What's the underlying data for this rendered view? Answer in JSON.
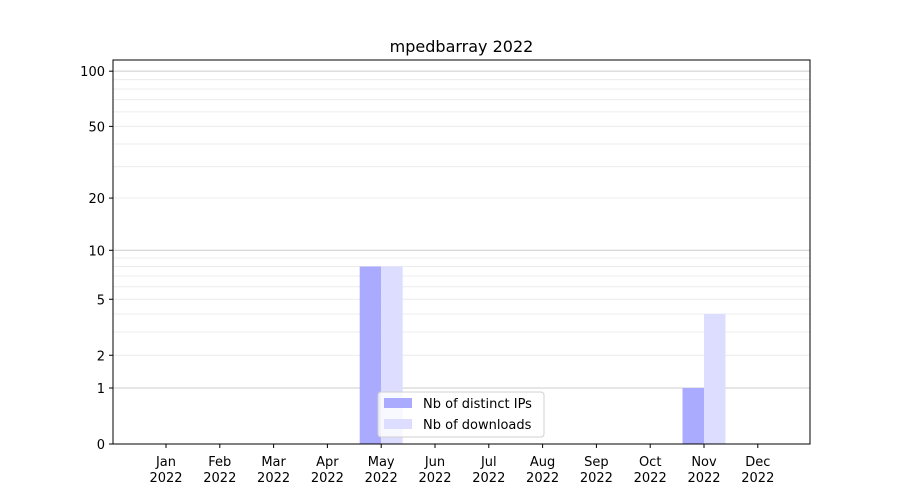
{
  "chart_data": {
    "type": "bar",
    "title": "mpedbarray 2022",
    "xlabel": "",
    "ylabel": "",
    "yscale": "log(1+y)",
    "ylim": [
      0,
      115
    ],
    "grid": true,
    "legend_position": "bottom-center",
    "categories": [
      "Jan\n2022",
      "Feb\n2022",
      "Mar\n2022",
      "Apr\n2022",
      "May\n2022",
      "Jun\n2022",
      "Jul\n2022",
      "Aug\n2022",
      "Sep\n2022",
      "Oct\n2022",
      "Nov\n2022",
      "Dec\n2022"
    ],
    "yticks": [
      0,
      1,
      2,
      5,
      10,
      20,
      50,
      100
    ],
    "series": [
      {
        "name": "Nb of distinct IPs",
        "color": "#aaaaff",
        "values": [
          0,
          0,
          0,
          0,
          8,
          0,
          0,
          0,
          0,
          0,
          1,
          0
        ]
      },
      {
        "name": "Nb of downloads",
        "color": "#ddddff",
        "values": [
          0,
          0,
          0,
          0,
          8,
          0,
          0,
          0,
          0,
          0,
          4,
          0
        ]
      }
    ]
  }
}
